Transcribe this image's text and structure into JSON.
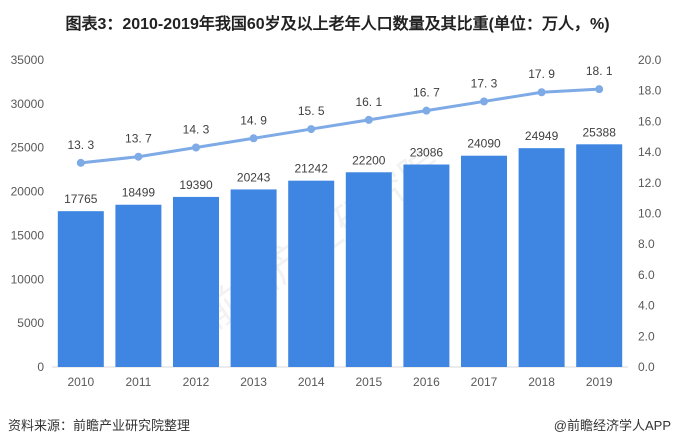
{
  "title": "图表3：2010-2019年我国60岁及以上老年人口数量及其比重(单位：万人，%)",
  "source": "资料来源：前瞻产业研究院整理",
  "credit": "@前瞻经济学人APP",
  "watermark": "前瞻产业研究院",
  "chart_data": {
    "type": "bar+line",
    "categories": [
      "2010",
      "2011",
      "2012",
      "2013",
      "2014",
      "2015",
      "2016",
      "2017",
      "2018",
      "2019"
    ],
    "series": [
      {
        "type": "bar",
        "axis": "left",
        "values": [
          17765,
          18499,
          19390,
          20243,
          21242,
          22200,
          23086,
          24090,
          24949,
          25388
        ],
        "color": "#3f86e2"
      },
      {
        "type": "line",
        "axis": "right",
        "values": [
          13.3,
          13.7,
          14.3,
          14.9,
          15.5,
          16.1,
          16.7,
          17.3,
          17.9,
          18.1
        ],
        "color": "#7eaae6"
      }
    ],
    "left_axis": {
      "range": [
        0,
        35000
      ],
      "ticks": [
        "0",
        "5000",
        "10000",
        "15000",
        "20000",
        "25000",
        "30000",
        "35000"
      ]
    },
    "right_axis": {
      "range": [
        0,
        20
      ],
      "ticks": [
        "0.0",
        "2.0",
        "4.0",
        "6.0",
        "8.0",
        "10.0",
        "12.0",
        "14.0",
        "16.0",
        "18.0",
        "20.0"
      ]
    },
    "grid": false,
    "legend": "none"
  }
}
